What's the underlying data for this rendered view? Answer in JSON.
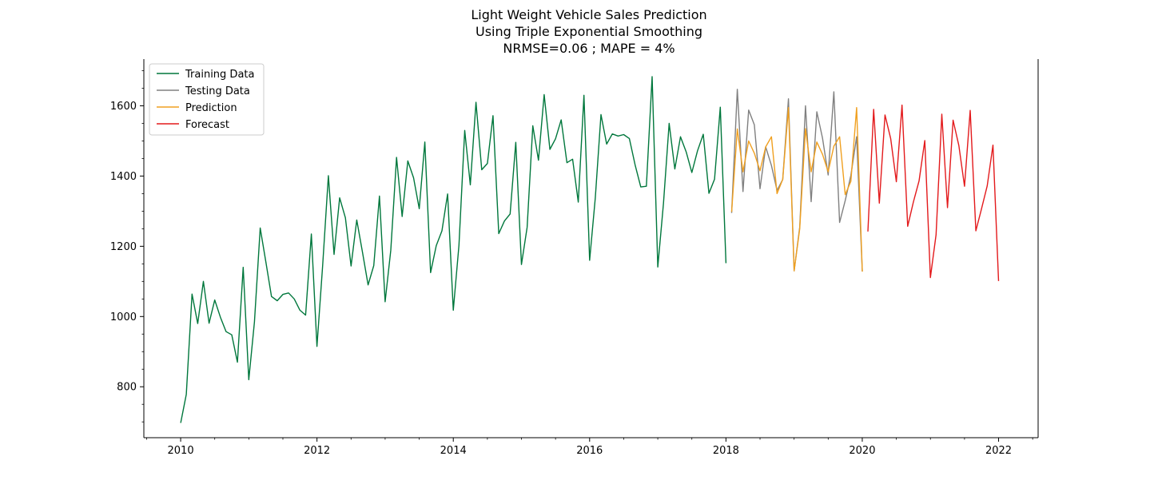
{
  "chart_data": {
    "type": "line",
    "title_lines": [
      "Light Weight Vehicle Sales Prediction",
      "Using Triple Exponential Smoothing",
      "NRMSE=0.06 ;  MAPE = 4%"
    ],
    "xlabel": "",
    "ylabel": "",
    "x_ticks": [
      "2010",
      "2012",
      "2014",
      "2016",
      "2018",
      "2020",
      "2022"
    ],
    "y_ticks": [
      "800",
      "1000",
      "1200",
      "1400",
      "1600"
    ],
    "xlim": [
      2009.46,
      2022.58
    ],
    "ylim": [
      655,
      1733
    ],
    "grid": false,
    "legend_position": "top-left",
    "series": [
      {
        "name": "Training Data",
        "color": "#00773c",
        "x": [
          2010.0,
          2010.083,
          2010.167,
          2010.25,
          2010.333,
          2010.417,
          2010.5,
          2010.583,
          2010.667,
          2010.75,
          2010.833,
          2010.917,
          2011.0,
          2011.083,
          2011.167,
          2011.25,
          2011.333,
          2011.417,
          2011.5,
          2011.583,
          2011.667,
          2011.75,
          2011.833,
          2011.917,
          2012.0,
          2012.083,
          2012.167,
          2012.25,
          2012.333,
          2012.417,
          2012.5,
          2012.583,
          2012.667,
          2012.75,
          2012.833,
          2012.917,
          2013.0,
          2013.083,
          2013.167,
          2013.25,
          2013.333,
          2013.417,
          2013.5,
          2013.583,
          2013.667,
          2013.75,
          2013.833,
          2013.917,
          2014.0,
          2014.083,
          2014.167,
          2014.25,
          2014.333,
          2014.417,
          2014.5,
          2014.583,
          2014.667,
          2014.75,
          2014.833,
          2014.917,
          2015.0,
          2015.083,
          2015.167,
          2015.25,
          2015.333,
          2015.417,
          2015.5,
          2015.583,
          2015.667,
          2015.75,
          2015.833,
          2015.917,
          2016.0,
          2016.083,
          2016.167,
          2016.25,
          2016.333,
          2016.417,
          2016.5,
          2016.583,
          2016.667,
          2016.75,
          2016.833,
          2016.917,
          2017.0,
          2017.083,
          2017.167,
          2017.25,
          2017.333,
          2017.417,
          2017.5,
          2017.583,
          2017.667,
          2017.75,
          2017.833,
          2017.917,
          2018.0
        ],
        "values": [
          697,
          778,
          1064,
          980,
          1100,
          981,
          1047,
          998,
          957,
          948,
          870,
          1140,
          820,
          985,
          1252,
          1155,
          1057,
          1045,
          1063,
          1067,
          1050,
          1018,
          1004,
          1235,
          915,
          1144,
          1401,
          1177,
          1338,
          1281,
          1144,
          1275,
          1184,
          1090,
          1145,
          1343,
          1042,
          1189,
          1453,
          1285,
          1443,
          1395,
          1307,
          1497,
          1125,
          1202,
          1244,
          1349,
          1018,
          1203,
          1530,
          1375,
          1610,
          1418,
          1436,
          1572,
          1236,
          1272,
          1292,
          1496,
          1148,
          1254,
          1543,
          1445,
          1632,
          1476,
          1506,
          1560,
          1438,
          1448,
          1326,
          1630,
          1160,
          1338,
          1575,
          1491,
          1520,
          1514,
          1518,
          1507,
          1432,
          1369,
          1371,
          1683,
          1141,
          1322,
          1550,
          1420,
          1512,
          1469,
          1410,
          1472,
          1519,
          1351,
          1391,
          1596,
          1152
        ]
      },
      {
        "name": "Testing Data",
        "color": "#808080",
        "x": [
          2018.083,
          2018.167,
          2018.25,
          2018.333,
          2018.417,
          2018.5,
          2018.583,
          2018.667,
          2018.75,
          2018.833,
          2018.917,
          2019.0,
          2019.083,
          2019.167,
          2019.25,
          2019.333,
          2019.417,
          2019.5,
          2019.583,
          2019.667,
          2019.75,
          2019.833,
          2019.917,
          2020.0
        ],
        "values": [
          1295,
          1647,
          1356,
          1588,
          1546,
          1364,
          1483,
          1430,
          1359,
          1390,
          1620,
          1130,
          1255,
          1600,
          1327,
          1583,
          1508,
          1403,
          1640,
          1268,
          1330,
          1402,
          1512,
          1128
        ]
      },
      {
        "name": "Prediction",
        "color": "#f0a020",
        "x": [
          2018.083,
          2018.167,
          2018.25,
          2018.333,
          2018.417,
          2018.5,
          2018.583,
          2018.667,
          2018.75,
          2018.833,
          2018.917,
          2019.0,
          2019.083,
          2019.167,
          2019.25,
          2019.333,
          2019.417,
          2019.5,
          2019.583,
          2019.667,
          2019.75,
          2019.833,
          2019.917,
          2020.0
        ],
        "values": [
          1298,
          1534,
          1412,
          1500,
          1465,
          1415,
          1483,
          1512,
          1350,
          1390,
          1595,
          1130,
          1250,
          1535,
          1412,
          1497,
          1462,
          1412,
          1485,
          1512,
          1347,
          1385,
          1595,
          1128
        ]
      },
      {
        "name": "Forecast",
        "color": "#e31a1c",
        "x": [
          2020.083,
          2020.167,
          2020.25,
          2020.333,
          2020.417,
          2020.5,
          2020.583,
          2020.667,
          2020.75,
          2020.833,
          2020.917,
          2021.0,
          2021.083,
          2021.167,
          2021.25,
          2021.333,
          2021.417,
          2021.5,
          2021.583,
          2021.667,
          2021.75,
          2021.833,
          2021.917,
          2022.0
        ],
        "values": [
          1242,
          1590,
          1323,
          1574,
          1507,
          1384,
          1602,
          1257,
          1326,
          1386,
          1501,
          1111,
          1233,
          1576,
          1310,
          1559,
          1487,
          1371,
          1587,
          1244,
          1307,
          1372,
          1488,
          1101
        ]
      }
    ]
  }
}
